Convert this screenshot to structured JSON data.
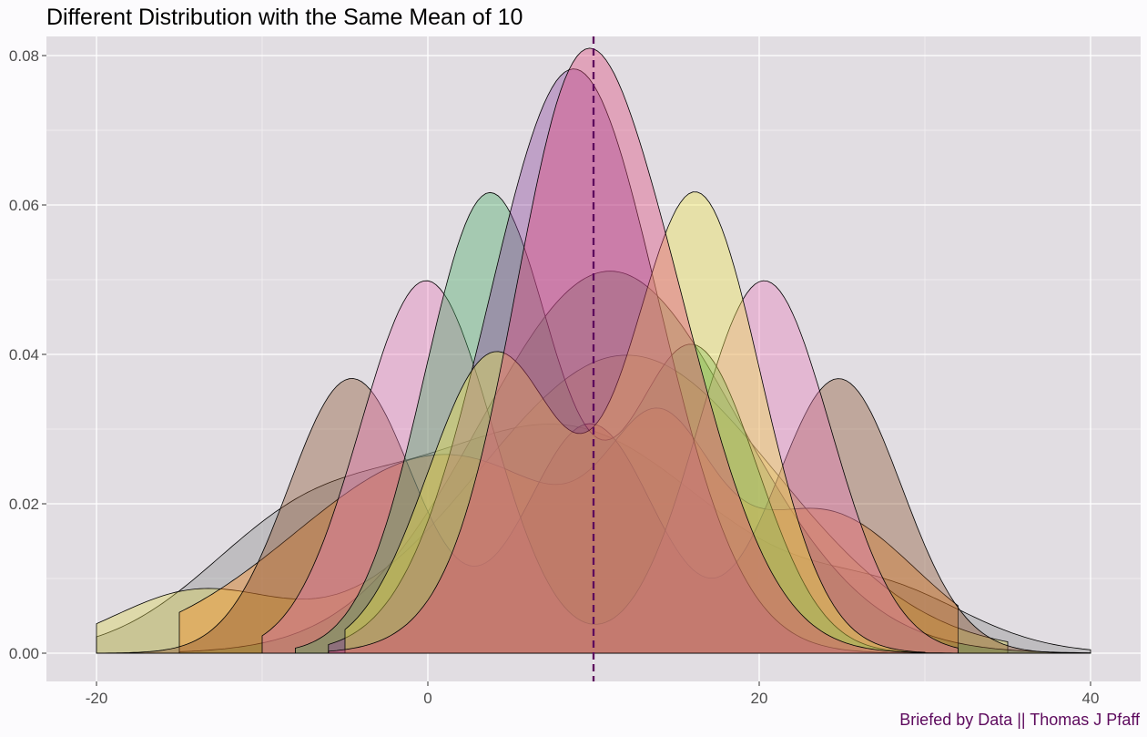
{
  "chart_data": {
    "type": "area",
    "title": "Different Distribution with the Same Mean of 10",
    "caption": "Briefed by Data || Thomas J Pfaff",
    "xlabel": "",
    "ylabel": "",
    "xlim": [
      -20,
      40
    ],
    "ylim": [
      0,
      0.08
    ],
    "x_ticks": [
      "-20",
      "0",
      "20",
      "40"
    ],
    "y_ticks": [
      "0.00",
      "0.02",
      "0.04",
      "0.06",
      "0.08"
    ],
    "grid": true,
    "legend": "none",
    "mean_line": {
      "x": 10,
      "color": "#5d0a5d",
      "style": "dashed"
    },
    "series": [
      {
        "color": "#888888",
        "components": [
          {
            "m": 8,
            "s": 9.5,
            "w": 0.72
          },
          {
            "m": -8,
            "s": 6,
            "w": 0.2
          },
          {
            "m": 28,
            "s": 5,
            "w": 0.08
          }
        ],
        "support": [
          -20,
          40
        ]
      },
      {
        "color": "#d9d34f",
        "components": [
          {
            "m": 12,
            "s": 9,
            "w": 0.9
          },
          {
            "m": -14,
            "s": 5,
            "w": 0.1
          }
        ],
        "support": [
          -20,
          35
        ]
      },
      {
        "color": "#3f9c4a",
        "components": [
          {
            "m": 11,
            "s": 7.8,
            "w": 1.0
          }
        ],
        "support": [
          -15,
          40
        ]
      },
      {
        "color": "#ff8c1a",
        "components": [
          {
            "m": 1,
            "s": 9,
            "w": 0.6
          },
          {
            "m": 24,
            "s": 5.5,
            "w": 0.25
          },
          {
            "m": 14,
            "s": 3,
            "w": 0.15
          }
        ],
        "support": [
          -15,
          32
        ]
      },
      {
        "color": "#8a4f2a",
        "components": [
          {
            "m": -4.6,
            "s": 3.8,
            "w": 0.35
          },
          {
            "m": 9.8,
            "s": 3.9,
            "w": 0.3
          },
          {
            "m": 24.8,
            "s": 3.8,
            "w": 0.35
          }
        ],
        "support": [
          -20,
          40
        ]
      },
      {
        "color": "#e87ab8",
        "components": [
          {
            "m": -0.1,
            "s": 4,
            "w": 0.5
          },
          {
            "m": 20.3,
            "s": 4,
            "w": 0.5
          }
        ],
        "support": [
          -10,
          32
        ]
      },
      {
        "color": "#44a860",
        "components": [
          {
            "m": 3.7,
            "s": 3.9,
            "w": 0.6
          },
          {
            "m": 16,
            "s": 3.9,
            "w": 0.4
          }
        ],
        "support": [
          -8,
          30
        ]
      },
      {
        "color": "#8a3f9a",
        "components": [
          {
            "m": 8.8,
            "s": 5.1,
            "w": 1.0
          }
        ],
        "support": [
          -6,
          29
        ]
      },
      {
        "color": "#f0e44a",
        "components": [
          {
            "m": 16.2,
            "s": 3.9,
            "w": 0.6
          },
          {
            "m": 4,
            "s": 4,
            "w": 0.4
          }
        ],
        "support": [
          -5,
          30
        ]
      },
      {
        "color": "#e0457a",
        "components": [
          {
            "m": 11,
            "s": 5.1,
            "w": 0.86
          },
          {
            "m": 8,
            "s": 3,
            "w": 0.14
          }
        ],
        "support": [
          -6,
          32
        ]
      }
    ]
  }
}
